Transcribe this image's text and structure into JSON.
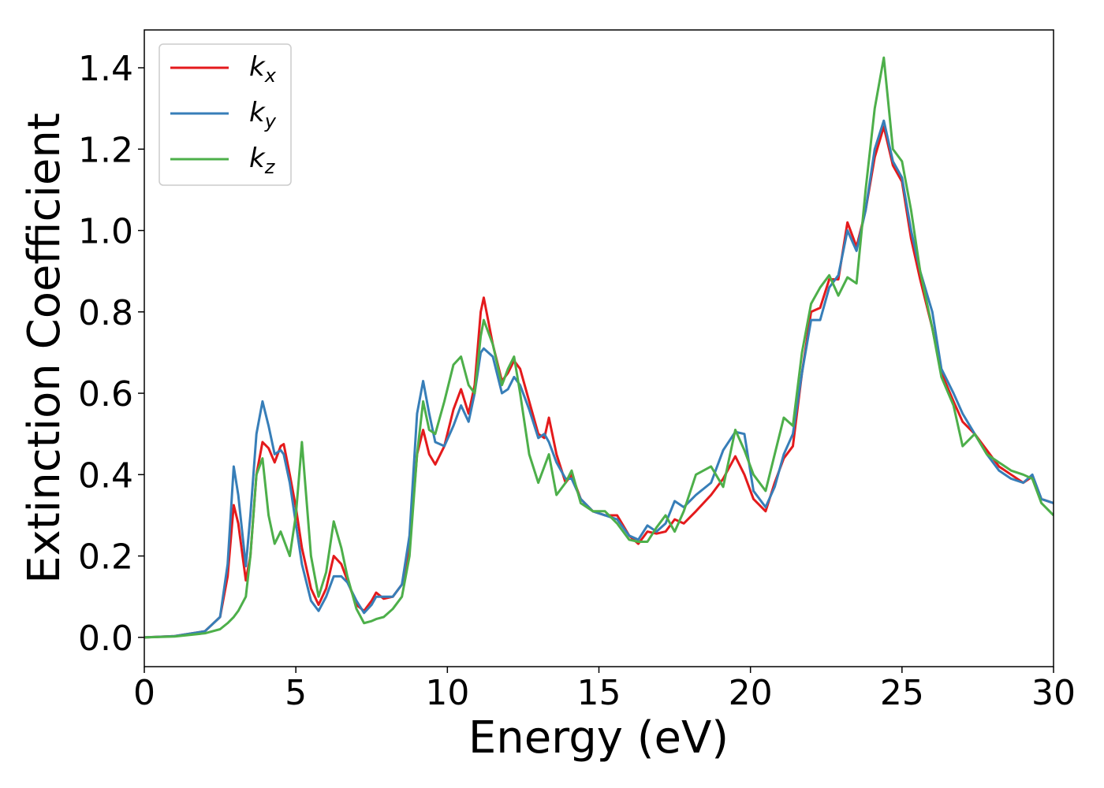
{
  "chart_data": {
    "type": "line",
    "xlabel": "Energy (eV)",
    "ylabel": "Extinction Coefficient",
    "x": [
      0,
      1,
      2,
      2.5,
      2.75,
      2.95,
      3.1,
      3.35,
      3.5,
      3.7,
      3.9,
      4.1,
      4.3,
      4.5,
      4.6,
      4.8,
      5.0,
      5.2,
      5.5,
      5.75,
      6.0,
      6.25,
      6.5,
      6.7,
      7.0,
      7.25,
      7.5,
      7.65,
      7.9,
      8.2,
      8.5,
      8.75,
      9.0,
      9.2,
      9.4,
      9.6,
      9.9,
      10.2,
      10.45,
      10.7,
      10.9,
      11.1,
      11.2,
      11.5,
      11.8,
      12.0,
      12.2,
      12.4,
      12.7,
      13.0,
      13.2,
      13.35,
      13.6,
      13.9,
      14.1,
      14.4,
      14.8,
      15.2,
      15.6,
      16.0,
      16.3,
      16.6,
      16.9,
      17.2,
      17.5,
      17.8,
      18.2,
      18.7,
      19.1,
      19.5,
      19.8,
      20.1,
      20.5,
      20.8,
      21.1,
      21.4,
      21.7,
      22.0,
      22.3,
      22.6,
      22.9,
      23.2,
      23.5,
      23.8,
      24.1,
      24.4,
      24.7,
      25.0,
      25.3,
      25.6,
      26.0,
      26.3,
      26.7,
      27.0,
      27.4,
      27.8,
      28.2,
      28.6,
      29.0,
      29.3,
      29.6,
      30
    ],
    "series": [
      {
        "name": "kx",
        "color": "#e41a1c",
        "values": [
          0,
          0.003,
          0.015,
          0.05,
          0.15,
          0.325,
          0.28,
          0.14,
          0.2,
          0.4,
          0.48,
          0.465,
          0.43,
          0.47,
          0.475,
          0.4,
          0.32,
          0.22,
          0.12,
          0.08,
          0.12,
          0.2,
          0.18,
          0.14,
          0.08,
          0.065,
          0.09,
          0.11,
          0.095,
          0.1,
          0.13,
          0.22,
          0.45,
          0.51,
          0.45,
          0.425,
          0.47,
          0.56,
          0.61,
          0.55,
          0.62,
          0.8,
          0.835,
          0.72,
          0.63,
          0.65,
          0.68,
          0.66,
          0.58,
          0.5,
          0.49,
          0.54,
          0.45,
          0.38,
          0.4,
          0.34,
          0.31,
          0.3,
          0.3,
          0.25,
          0.23,
          0.26,
          0.255,
          0.26,
          0.29,
          0.28,
          0.31,
          0.35,
          0.39,
          0.445,
          0.4,
          0.34,
          0.31,
          0.38,
          0.44,
          0.47,
          0.65,
          0.8,
          0.81,
          0.88,
          0.88,
          1.02,
          0.96,
          1.05,
          1.18,
          1.255,
          1.16,
          1.12,
          0.98,
          0.88,
          0.76,
          0.65,
          0.58,
          0.53,
          0.5,
          0.46,
          0.42,
          0.4,
          0.38,
          0.395,
          0.34,
          0.33
        ]
      },
      {
        "name": "ky",
        "color": "#377eb8",
        "values": [
          0,
          0.003,
          0.015,
          0.05,
          0.18,
          0.42,
          0.35,
          0.175,
          0.3,
          0.5,
          0.58,
          0.52,
          0.45,
          0.46,
          0.45,
          0.38,
          0.28,
          0.18,
          0.09,
          0.065,
          0.1,
          0.15,
          0.15,
          0.135,
          0.09,
          0.06,
          0.08,
          0.1,
          0.1,
          0.1,
          0.13,
          0.25,
          0.55,
          0.63,
          0.55,
          0.48,
          0.47,
          0.52,
          0.57,
          0.53,
          0.6,
          0.7,
          0.71,
          0.69,
          0.6,
          0.61,
          0.64,
          0.62,
          0.56,
          0.49,
          0.5,
          0.48,
          0.43,
          0.39,
          0.39,
          0.34,
          0.31,
          0.3,
          0.29,
          0.25,
          0.24,
          0.275,
          0.26,
          0.28,
          0.335,
          0.32,
          0.35,
          0.38,
          0.46,
          0.505,
          0.5,
          0.36,
          0.32,
          0.37,
          0.45,
          0.5,
          0.65,
          0.78,
          0.78,
          0.86,
          0.89,
          1.0,
          0.95,
          1.05,
          1.2,
          1.27,
          1.17,
          1.13,
          1.0,
          0.9,
          0.8,
          0.66,
          0.6,
          0.55,
          0.5,
          0.45,
          0.41,
          0.39,
          0.38,
          0.4,
          0.34,
          0.33
        ]
      },
      {
        "name": "kz",
        "color": "#4daf4a",
        "values": [
          0,
          0.002,
          0.01,
          0.02,
          0.035,
          0.05,
          0.065,
          0.1,
          0.2,
          0.4,
          0.44,
          0.3,
          0.23,
          0.26,
          0.24,
          0.2,
          0.3,
          0.48,
          0.2,
          0.1,
          0.16,
          0.285,
          0.22,
          0.15,
          0.07,
          0.035,
          0.04,
          0.045,
          0.05,
          0.07,
          0.1,
          0.2,
          0.45,
          0.58,
          0.51,
          0.5,
          0.58,
          0.67,
          0.69,
          0.62,
          0.6,
          0.74,
          0.78,
          0.72,
          0.62,
          0.66,
          0.69,
          0.6,
          0.45,
          0.38,
          0.42,
          0.45,
          0.35,
          0.38,
          0.41,
          0.33,
          0.31,
          0.31,
          0.28,
          0.24,
          0.235,
          0.235,
          0.27,
          0.3,
          0.26,
          0.31,
          0.4,
          0.42,
          0.37,
          0.51,
          0.46,
          0.4,
          0.36,
          0.45,
          0.54,
          0.52,
          0.7,
          0.82,
          0.86,
          0.89,
          0.84,
          0.885,
          0.87,
          1.1,
          1.3,
          1.425,
          1.2,
          1.17,
          1.05,
          0.9,
          0.76,
          0.64,
          0.57,
          0.47,
          0.5,
          0.45,
          0.43,
          0.41,
          0.4,
          0.39,
          0.33,
          0.3
        ]
      }
    ],
    "xlim": [
      0,
      30
    ],
    "xticks": [
      0,
      5,
      10,
      15,
      20,
      25,
      30
    ],
    "ylim": [
      -0.072,
      1.493
    ],
    "yticks": [
      {
        "value": 0,
        "label": "0.0"
      },
      0.2,
      0.4,
      0.6,
      0.8,
      {
        "value": 1,
        "label": "1.0"
      },
      1.2,
      1.4
    ],
    "legend": "upper left",
    "grid": false
  }
}
